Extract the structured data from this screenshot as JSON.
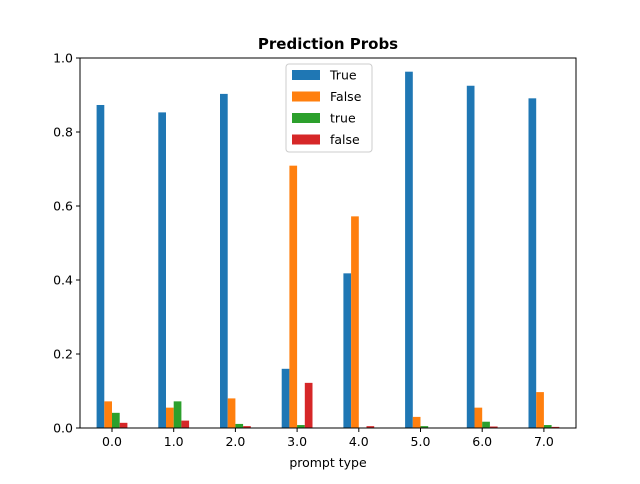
{
  "chart_data": {
    "type": "bar",
    "title": "Prediction Probs",
    "xlabel": "prompt type",
    "ylabel": "",
    "categories": [
      "0.0",
      "1.0",
      "2.0",
      "3.0",
      "4.0",
      "5.0",
      "6.0",
      "7.0"
    ],
    "yticks": [
      "0.0",
      "0.2",
      "0.4",
      "0.6",
      "0.8",
      "1.0"
    ],
    "ylim": [
      0,
      1.0
    ],
    "grid": false,
    "legend_position": "top-center",
    "series": [
      {
        "name": "True",
        "color": "#1f77b4",
        "values": [
          0.873,
          0.853,
          0.903,
          0.16,
          0.418,
          0.963,
          0.925,
          0.891
        ]
      },
      {
        "name": "False",
        "color": "#ff7f0e",
        "values": [
          0.072,
          0.055,
          0.08,
          0.709,
          0.572,
          0.03,
          0.055,
          0.097
        ]
      },
      {
        "name": "true",
        "color": "#2ca02c",
        "values": [
          0.041,
          0.072,
          0.011,
          0.008,
          0.0,
          0.005,
          0.017,
          0.008
        ]
      },
      {
        "name": "false",
        "color": "#d62728",
        "values": [
          0.014,
          0.02,
          0.005,
          0.122,
          0.005,
          0.0,
          0.004,
          0.003
        ]
      }
    ]
  }
}
